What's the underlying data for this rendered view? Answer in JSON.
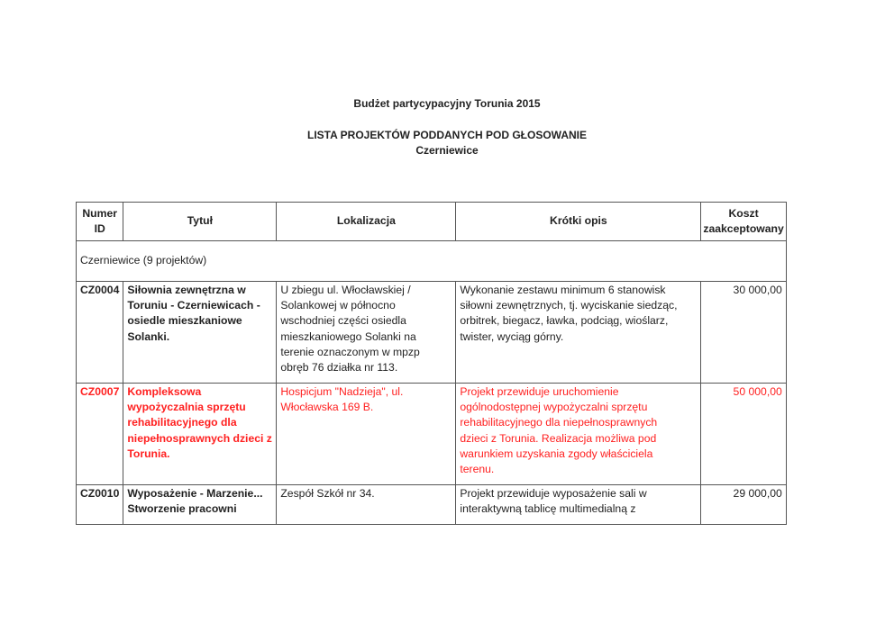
{
  "header": {
    "title": "Budżet partycypacyjny Torunia 2015",
    "subtitle": "LISTA PROJEKTÓW PODDANYCH POD GŁOSOWANIE",
    "district": "Czerniewice"
  },
  "table": {
    "columns": [
      "Numer\nID",
      "Tytuł",
      "Lokalizacja",
      "Krótki opis",
      "Koszt\nzaakceptowany"
    ],
    "group_label": "Czerniewice (9 projektów)",
    "highlight_color": "#ff2020",
    "rows": [
      {
        "id": "CZ0004",
        "title": "Siłownia zewnętrzna w\nToruniu - Czerniewicach -\nosiedle mieszkaniowe\nSolanki.",
        "location": "U zbiegu ul. Włocławskiej /\nSolankowej w północno\nwschodniej części osiedla\nmieszkaniowego Solanki na\nterenie oznaczonym w mpzp\nobręb 76 działka nr 113.",
        "description": "Wykonanie zestawu minimum 6 stanowisk\nsiłowni zewnętrznych, tj. wyciskanie siedząc,\norbitrek, biegacz, ławka, podciąg, wioślarz,\ntwister, wyciąg górny.",
        "cost": "30 000,00",
        "highlighted": false
      },
      {
        "id": "CZ0007",
        "title": "Kompleksowa\nwypożyczalnia sprzętu\nrehabilitacyjnego dla\nniepełnosprawnych dzieci z\nTorunia.",
        "location": "Hospicjum \"Nadzieja\", ul.\nWłocławska 169 B.",
        "description": "Projekt przewiduje uruchomienie\nogólnodostępnej wypożyczalni sprzętu\nrehabilitacyjnego dla niepełnosprawnych\ndzieci z Torunia. Realizacja możliwa pod\nwarunkiem uzyskania zgody właściciela\nterenu.",
        "cost": "50 000,00",
        "highlighted": true
      },
      {
        "id": "CZ0010",
        "title": "Wyposażenie - Marzenie...\nStworzenie pracowni",
        "location": "Zespół Szkół nr 34.",
        "description": "Projekt przewiduje wyposażenie sali w\ninteraktywną tablicę multimedialną z",
        "cost": "29 000,00",
        "highlighted": false
      }
    ]
  }
}
